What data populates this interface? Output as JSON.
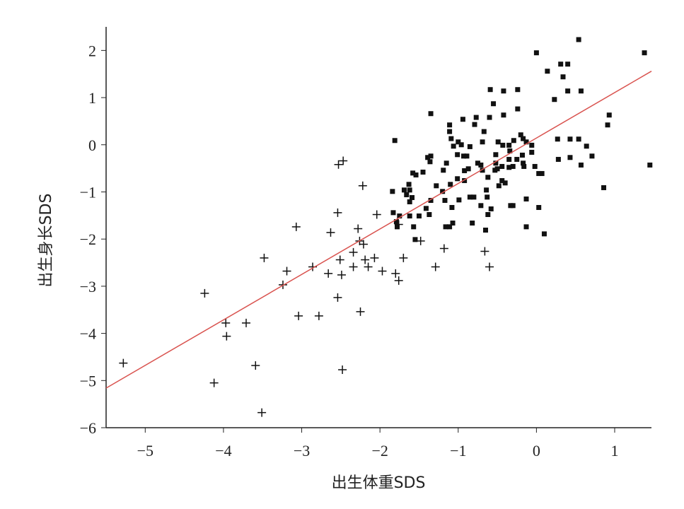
{
  "chart_data": {
    "type": "scatter",
    "x_label": "出生体重SDS",
    "y_label": "出生身长SDS",
    "xlim": [
      -5.5,
      1.47
    ],
    "ylim": [
      -6,
      2.5
    ],
    "xticks": [
      {
        "value": -5,
        "label": "−5"
      },
      {
        "value": -4,
        "label": "−4"
      },
      {
        "value": -3,
        "label": "−3"
      },
      {
        "value": -2,
        "label": "−2"
      },
      {
        "value": -1,
        "label": "−1"
      },
      0,
      1
    ],
    "yticks": [
      {
        "value": -6,
        "label": "−6"
      },
      {
        "value": -5,
        "label": "−5"
      },
      {
        "value": -4,
        "label": "−4"
      },
      {
        "value": -3,
        "label": "−3"
      },
      {
        "value": -2,
        "label": "−2"
      },
      {
        "value": -1,
        "label": "−1"
      },
      0,
      1,
      2
    ],
    "series": [
      {
        "marker": "plus",
        "color": "#111111",
        "x": [
          -5.28,
          -4.24,
          -3.97,
          -3.96,
          -4.12,
          -3.71,
          -3.59,
          -3.51,
          -3.48,
          -3.19,
          -3.24,
          -3.07,
          -3.04,
          -2.86,
          -2.78,
          -2.63,
          -2.66,
          -2.54,
          -2.54,
          -2.53,
          -2.47,
          -2.49,
          -2.51,
          -2.48,
          -2.34,
          -2.34,
          -2.28,
          -2.26,
          -2.25,
          -2.22,
          -2.21,
          -2.19,
          -2.15,
          -2.07,
          -2.04,
          -1.97,
          -1.8,
          -1.76,
          -1.7,
          -1.48,
          -1.29,
          -1.18,
          -0.66,
          -0.6,
          -1.76
        ],
        "y": [
          -4.63,
          -3.15,
          -3.78,
          -4.06,
          -5.05,
          -3.78,
          -4.68,
          -5.68,
          -2.4,
          -2.68,
          -2.97,
          -1.74,
          -3.63,
          -2.59,
          -3.63,
          -1.86,
          -2.73,
          -1.44,
          -3.24,
          -0.42,
          -0.34,
          -2.76,
          -2.44,
          -4.77,
          -2.28,
          -2.59,
          -1.78,
          -2.04,
          -3.54,
          -0.87,
          -2.11,
          -2.44,
          -2.59,
          -2.4,
          -1.48,
          -2.68,
          -2.73,
          -2.88,
          -2.4,
          -2.04,
          -2.59,
          -2.2,
          -2.26,
          -2.59,
          -1.69
        ]
      },
      {
        "marker": "square",
        "color": "#111111",
        "x": [
          0.0,
          0.54,
          1.38,
          1.45,
          0.86,
          0.93,
          0.91,
          0.14,
          0.31,
          0.4,
          0.34,
          0.4,
          0.57,
          0.23,
          0.27,
          0.43,
          0.54,
          0.28,
          0.43,
          0.57,
          0.64,
          0.71,
          0.1,
          -0.13,
          0.03,
          -0.13,
          0.03,
          0.07,
          -0.02,
          -0.16,
          -0.2,
          -0.17,
          -0.24,
          -0.24,
          -0.42,
          -0.42,
          -0.59,
          -0.55,
          -0.6,
          -0.79,
          -0.77,
          -0.67,
          -0.94,
          -1.11,
          -1.11,
          -1.09,
          -1.0,
          -1.06,
          -0.96,
          -0.85,
          -0.69,
          -0.49,
          -0.43,
          -0.35,
          -0.29,
          -0.34,
          -0.13,
          -0.06,
          -0.06,
          -1.35,
          -1.35,
          -1.36,
          -1.39,
          -1.45,
          -1.54,
          -1.58,
          -1.63,
          -1.66,
          -1.69,
          -1.62,
          -1.62,
          -1.59,
          -1.84,
          -1.81,
          -1.83,
          -1.75,
          -1.79,
          -1.78,
          -1.62,
          -1.57,
          -1.5,
          -1.41,
          -1.37,
          -1.55,
          -1.35,
          -1.28,
          -1.19,
          -1.2,
          -1.17,
          -1.16,
          -1.11,
          -1.08,
          -1.07,
          -1.15,
          -1.1,
          -1.01,
          -0.99,
          -1.01,
          -0.93,
          -0.89,
          -0.87,
          -0.92,
          -0.85,
          -0.8,
          -0.82,
          -0.92,
          -0.75,
          -0.71,
          -0.71,
          -0.69,
          -0.64,
          -0.63,
          -0.65,
          -0.62,
          -0.58,
          -0.62,
          -0.53,
          -0.52,
          -0.5,
          -0.52,
          -0.44,
          -0.48,
          -0.44,
          -0.4,
          -0.35,
          -0.35,
          -0.25,
          -0.3,
          -0.33,
          -0.3,
          -0.18,
          -0.17
        ],
        "y": [
          1.95,
          2.23,
          1.95,
          -0.43,
          -0.91,
          0.63,
          0.42,
          1.56,
          1.71,
          1.71,
          1.44,
          1.14,
          1.14,
          0.96,
          0.12,
          0.12,
          0.12,
          -0.31,
          -0.27,
          -0.43,
          -0.03,
          -0.24,
          -1.89,
          -1.74,
          -1.33,
          -1.15,
          -0.61,
          -0.61,
          -0.46,
          -0.46,
          0.21,
          0.13,
          1.17,
          0.76,
          1.14,
          0.63,
          1.17,
          0.87,
          0.58,
          0.43,
          0.58,
          0.28,
          0.54,
          0.42,
          0.28,
          0.13,
          0.06,
          -0.03,
          0.0,
          -0.04,
          0.06,
          0.06,
          -0.01,
          -0.01,
          0.09,
          -0.13,
          0.06,
          -0.01,
          -0.16,
          0.66,
          -0.24,
          -0.36,
          -0.27,
          -0.58,
          -0.64,
          -0.6,
          -0.84,
          -1.06,
          -0.96,
          -0.96,
          -1.21,
          -1.12,
          -0.99,
          0.09,
          -1.44,
          -1.51,
          -1.63,
          -1.74,
          -1.51,
          -1.74,
          -1.51,
          -1.35,
          -1.48,
          -2.01,
          -1.18,
          -0.87,
          -0.54,
          -0.99,
          -1.18,
          -1.74,
          -1.74,
          -1.33,
          -1.66,
          -0.39,
          -0.84,
          -0.72,
          -1.17,
          -0.21,
          -0.24,
          -0.24,
          -0.51,
          -0.76,
          -1.11,
          -1.11,
          -1.66,
          -0.55,
          -0.39,
          -0.43,
          -1.29,
          -0.54,
          -0.96,
          -1.11,
          -1.81,
          -1.48,
          -1.36,
          -0.69,
          -0.54,
          -0.39,
          -0.51,
          -0.21,
          -0.46,
          -0.87,
          -0.76,
          -0.81,
          -0.48,
          -0.31,
          -0.31,
          -0.46,
          -1.29,
          -1.29,
          -0.22,
          -0.39
        ]
      },
      {
        "marker": "line",
        "color": "#d9534f",
        "x": [
          -5.5,
          1.47
        ],
        "y": [
          -5.16,
          1.56
        ]
      }
    ]
  }
}
